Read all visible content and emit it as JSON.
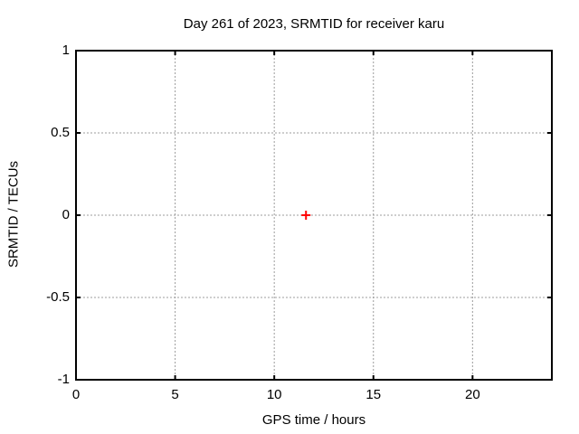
{
  "chart_data": {
    "type": "scatter",
    "title": "Day 261 of 2023, SRMTID for receiver karu",
    "xlabel": "GPS time / hours",
    "ylabel": "SRMTID / TECUs",
    "xlim": [
      0,
      24
    ],
    "ylim": [
      -1,
      1
    ],
    "xticks": [
      {
        "v": 0,
        "label": "0"
      },
      {
        "v": 5,
        "label": "5"
      },
      {
        "v": 10,
        "label": "10"
      },
      {
        "v": 15,
        "label": "15"
      },
      {
        "v": 20,
        "label": "20"
      }
    ],
    "yticks": [
      {
        "v": -1,
        "label": "-1"
      },
      {
        "v": -0.5,
        "label": "-0.5"
      },
      {
        "v": 0,
        "label": "0"
      },
      {
        "v": 0.5,
        "label": "0.5"
      },
      {
        "v": 1,
        "label": "1"
      }
    ],
    "grid": true,
    "grid_style": "dashed",
    "legend": "none",
    "colors": {
      "background": "#ffffff",
      "border": "#000000",
      "grid": "#9c9c9c",
      "text": "#000000",
      "marker": "#ff0000"
    },
    "series": [
      {
        "name": "srmtid",
        "marker": "plus",
        "color": "#ff0000",
        "points": [
          {
            "x": 11.6,
            "y": 0.0
          }
        ]
      }
    ]
  }
}
